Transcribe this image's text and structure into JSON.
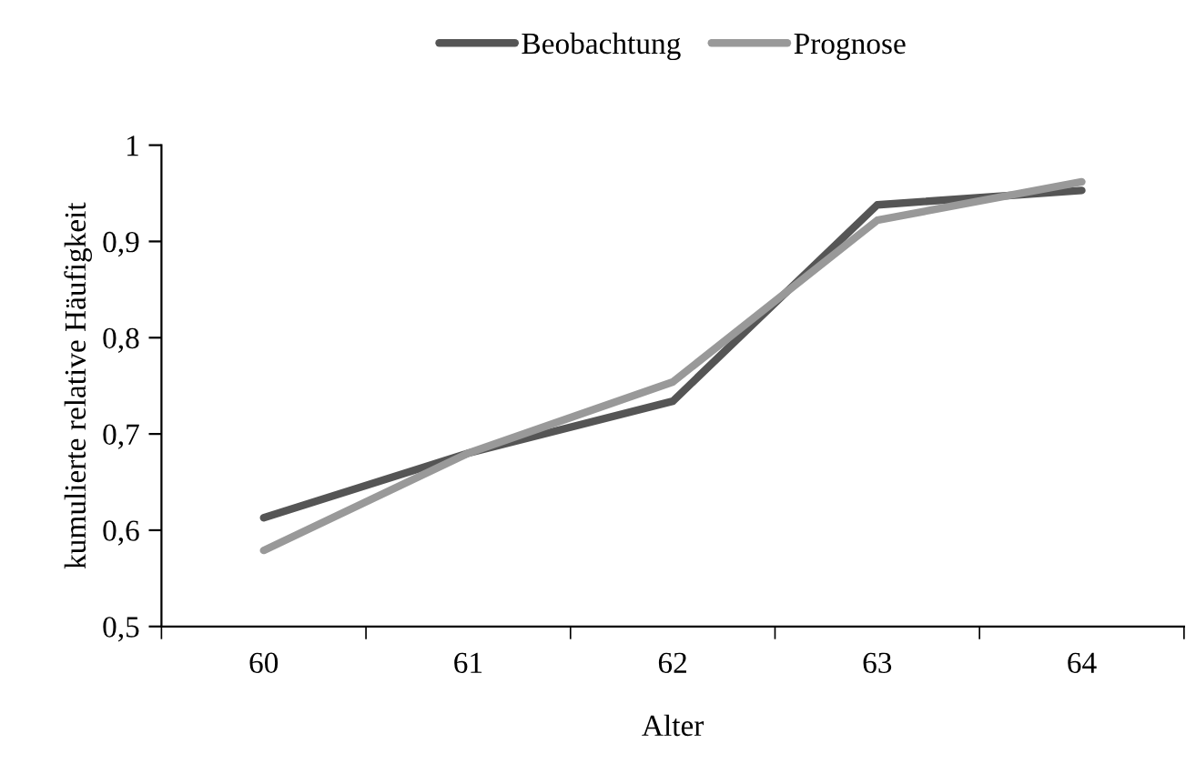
{
  "chart_data": {
    "type": "line",
    "xlabel": "Alter",
    "ylabel": "kumulierte relative Häufigkeit",
    "categories": [
      "60",
      "61",
      "62",
      "63",
      "64"
    ],
    "series": [
      {
        "name": "Beobachtung",
        "color": "#555555",
        "values": [
          0.613,
          0.68,
          0.734,
          0.938,
          0.953
        ]
      },
      {
        "name": "Prognose",
        "color": "#999999",
        "values": [
          0.579,
          0.68,
          0.754,
          0.922,
          0.962
        ]
      }
    ],
    "ylim": [
      0.5,
      1
    ],
    "yticks": [
      {
        "value": 0.5,
        "label": "0,5"
      },
      {
        "value": 0.6,
        "label": "0,6"
      },
      {
        "value": 0.7,
        "label": "0,7"
      },
      {
        "value": 0.8,
        "label": "0,8"
      },
      {
        "value": 0.9,
        "label": "0,9"
      },
      {
        "value": 1,
        "label": "1"
      }
    ],
    "grid": false,
    "legend": "top",
    "marker": "none",
    "line_style": "solid"
  }
}
